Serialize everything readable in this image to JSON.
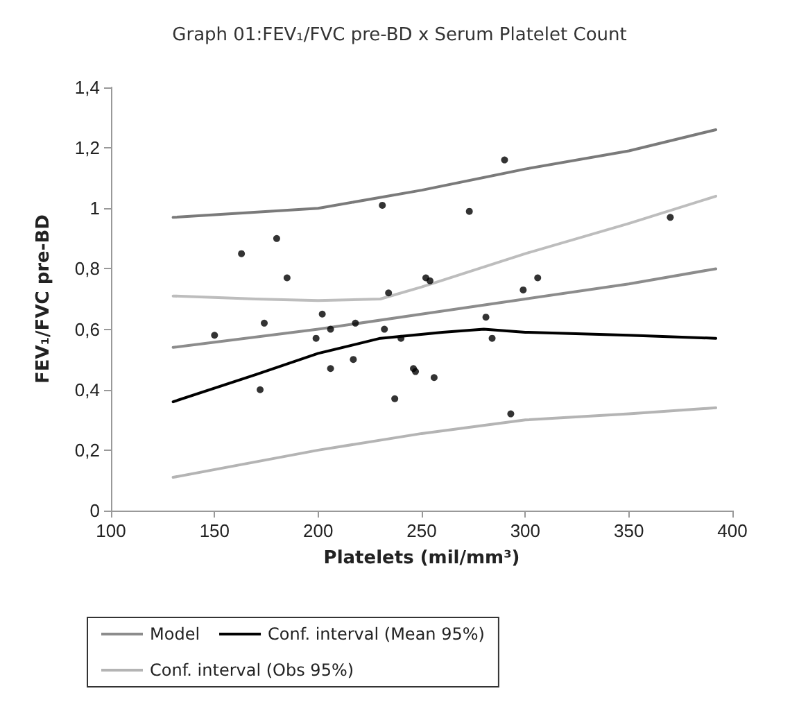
{
  "chart_data": {
    "type": "scatter",
    "title": "Graph 01:FEV₁/FVC pre-BD x Serum Platelet Count",
    "xlabel": "Platelets (mil/mm³)",
    "ylabel": "FEV₁/FVC pre-BD",
    "xlim": [
      100,
      400
    ],
    "xticks": [
      100,
      150,
      200,
      250,
      300,
      350,
      400
    ],
    "ylim": [
      0,
      1.4
    ],
    "yticks": [
      0,
      {
        "value": 0.2,
        "label": "0,2"
      },
      {
        "value": 0.4,
        "label": "0,4"
      },
      {
        "value": 0.6,
        "label": "0,6"
      },
      {
        "value": 0.8,
        "label": "0,8"
      },
      1,
      {
        "value": 1.2,
        "label": "1,2"
      },
      {
        "value": 1.4,
        "label": "1,4"
      }
    ],
    "grid": false,
    "legend": "bottom",
    "series": [
      {
        "marker": "circle",
        "color": "#000000",
        "x": [
          150,
          174,
          172,
          199,
          202,
          206,
          206,
          218,
          217,
          232,
          234,
          237,
          240,
          246,
          247,
          256,
          281,
          284,
          293,
          299,
          306,
          252,
          254,
          185,
          163,
          180,
          231,
          273,
          290,
          370
        ],
        "values": [
          0.58,
          0.62,
          0.4,
          0.57,
          0.65,
          0.6,
          0.47,
          0.62,
          0.5,
          0.6,
          0.72,
          0.37,
          0.57,
          0.47,
          0.46,
          0.44,
          0.64,
          0.57,
          0.32,
          0.73,
          0.77,
          0.77,
          0.76,
          0.77,
          0.85,
          0.9,
          1.01,
          0.99,
          1.16,
          0.97
        ]
      },
      {
        "type": "line",
        "marker": "none",
        "name": "Model",
        "color": "#8c8c8c",
        "x": [
          130,
          200,
          250,
          300,
          350,
          392
        ],
        "values": [
          0.54,
          0.6,
          0.65,
          0.7,
          0.75,
          0.8
        ]
      },
      {
        "type": "line",
        "marker": "none",
        "name": "Conf. interval (Mean 95%)",
        "color": "#000000",
        "x": [
          130,
          170,
          200,
          230,
          260,
          280,
          300,
          350,
          392
        ],
        "values": [
          0.36,
          0.45,
          0.52,
          0.57,
          0.59,
          0.6,
          0.59,
          0.58,
          0.57
        ]
      },
      {
        "type": "line",
        "marker": "none",
        "name": "Conf. interval (Obs 95%)",
        "color": "#b4b4b4",
        "x": [
          130,
          200,
          250,
          300,
          350,
          392
        ],
        "values": [
          0.11,
          0.2,
          0.255,
          0.3,
          0.32,
          0.34
        ]
      },
      {
        "type": "line",
        "marker": "none",
        "color": "#bdbdbd",
        "x": [
          130,
          170,
          200,
          230,
          250,
          300,
          350,
          392
        ],
        "values": [
          0.71,
          0.7,
          0.695,
          0.7,
          0.74,
          0.85,
          0.95,
          1.04
        ]
      },
      {
        "type": "line",
        "marker": "none",
        "color": "#7a7a7a",
        "x": [
          130,
          200,
          250,
          300,
          350,
          392
        ],
        "values": [
          0.97,
          1.0,
          1.06,
          1.13,
          1.19,
          1.26
        ]
      }
    ]
  }
}
